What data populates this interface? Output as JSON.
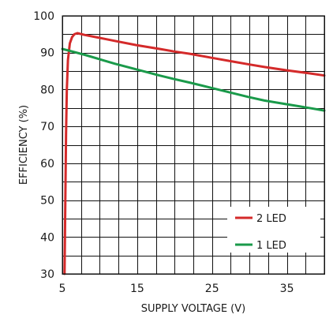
{
  "chart_data": {
    "type": "line",
    "title": "",
    "xlabel": "SUPPLY VOLTAGE (V)",
    "ylabel": "EFFICIENCY (%)",
    "xlim": [
      5,
      40
    ],
    "ylim": [
      30,
      100
    ],
    "x_ticks": [
      5,
      15,
      25,
      35
    ],
    "x_tick_labels": [
      "5",
      "15",
      "25",
      "35"
    ],
    "x_grid_step": 2.5,
    "y_ticks": [
      30,
      40,
      50,
      60,
      70,
      80,
      90,
      100
    ],
    "y_tick_labels": [
      "30",
      "40",
      "50",
      "60",
      "70",
      "80",
      "90",
      "100"
    ],
    "y_grid_step": 5,
    "grid": true,
    "legend_position": "bottom-right",
    "series": [
      {
        "name": "2 LED",
        "color": "#d42a2a",
        "points": [
          [
            5.3,
            30
          ],
          [
            5.4,
            50
          ],
          [
            5.5,
            68
          ],
          [
            5.6,
            80
          ],
          [
            5.75,
            88
          ],
          [
            6.0,
            92.5
          ],
          [
            6.3,
            94.2
          ],
          [
            6.6,
            95.0
          ],
          [
            7,
            95.3
          ],
          [
            8,
            94.8
          ],
          [
            10,
            94.0
          ],
          [
            12,
            93.2
          ],
          [
            15,
            92.0
          ],
          [
            18,
            91.0
          ],
          [
            20,
            90.3
          ],
          [
            22,
            89.7
          ],
          [
            25,
            88.6
          ],
          [
            28,
            87.5
          ],
          [
            30,
            86.8
          ],
          [
            32,
            86.1
          ],
          [
            35,
            85.2
          ],
          [
            38,
            84.4
          ],
          [
            40,
            83.8
          ]
        ]
      },
      {
        "name": "1 LED",
        "color": "#1a9a4a",
        "points": [
          [
            5,
            91.0
          ],
          [
            6,
            90.5
          ],
          [
            8,
            89.4
          ],
          [
            10,
            88.2
          ],
          [
            12,
            87.0
          ],
          [
            15,
            85.4
          ],
          [
            18,
            83.8
          ],
          [
            20,
            82.8
          ],
          [
            22,
            81.9
          ],
          [
            25,
            80.4
          ],
          [
            28,
            78.9
          ],
          [
            30,
            77.9
          ],
          [
            32,
            77.0
          ],
          [
            35,
            76.0
          ],
          [
            38,
            75.0
          ],
          [
            40,
            74.3
          ]
        ]
      }
    ]
  }
}
